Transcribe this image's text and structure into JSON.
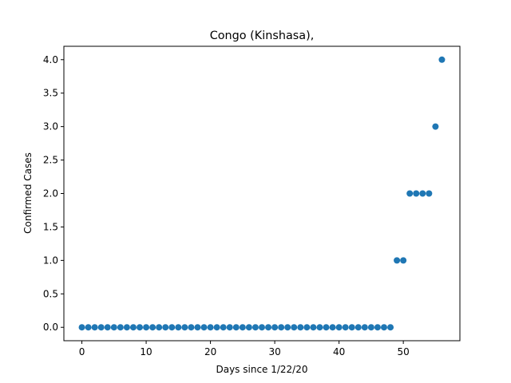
{
  "chart_data": {
    "type": "scatter",
    "title": "Congo (Kinshasa),",
    "xlabel": "Days since 1/22/20",
    "ylabel": "Confirmed Cases",
    "xlim": [
      -2.8,
      58.8
    ],
    "ylim": [
      -0.2,
      4.2
    ],
    "xticks": [
      0,
      10,
      20,
      30,
      40,
      50
    ],
    "xtick_labels": [
      "0",
      "10",
      "20",
      "30",
      "40",
      "50"
    ],
    "yticks": [
      0,
      0.5,
      1,
      1.5,
      2,
      2.5,
      3,
      3.5,
      4
    ],
    "ytick_labels": [
      "0.0",
      "0.5",
      "1.0",
      "1.5",
      "2.0",
      "2.5",
      "3.0",
      "3.5",
      "4.0"
    ],
    "grid": false,
    "marker_color": "#1f77b4",
    "series": [
      {
        "x": [
          0,
          1,
          2,
          3,
          4,
          5,
          6,
          7,
          8,
          9,
          10,
          11,
          12,
          13,
          14,
          15,
          16,
          17,
          18,
          19,
          20,
          21,
          22,
          23,
          24,
          25,
          26,
          27,
          28,
          29,
          30,
          31,
          32,
          33,
          34,
          35,
          36,
          37,
          38,
          39,
          40,
          41,
          42,
          43,
          44,
          45,
          46,
          47,
          48,
          49,
          50,
          51,
          52,
          53,
          54,
          55,
          56
        ],
        "y": [
          0,
          0,
          0,
          0,
          0,
          0,
          0,
          0,
          0,
          0,
          0,
          0,
          0,
          0,
          0,
          0,
          0,
          0,
          0,
          0,
          0,
          0,
          0,
          0,
          0,
          0,
          0,
          0,
          0,
          0,
          0,
          0,
          0,
          0,
          0,
          0,
          0,
          0,
          0,
          0,
          0,
          0,
          0,
          0,
          0,
          0,
          0,
          0,
          0,
          1,
          1,
          2,
          2,
          2,
          2,
          3,
          4
        ]
      }
    ]
  }
}
